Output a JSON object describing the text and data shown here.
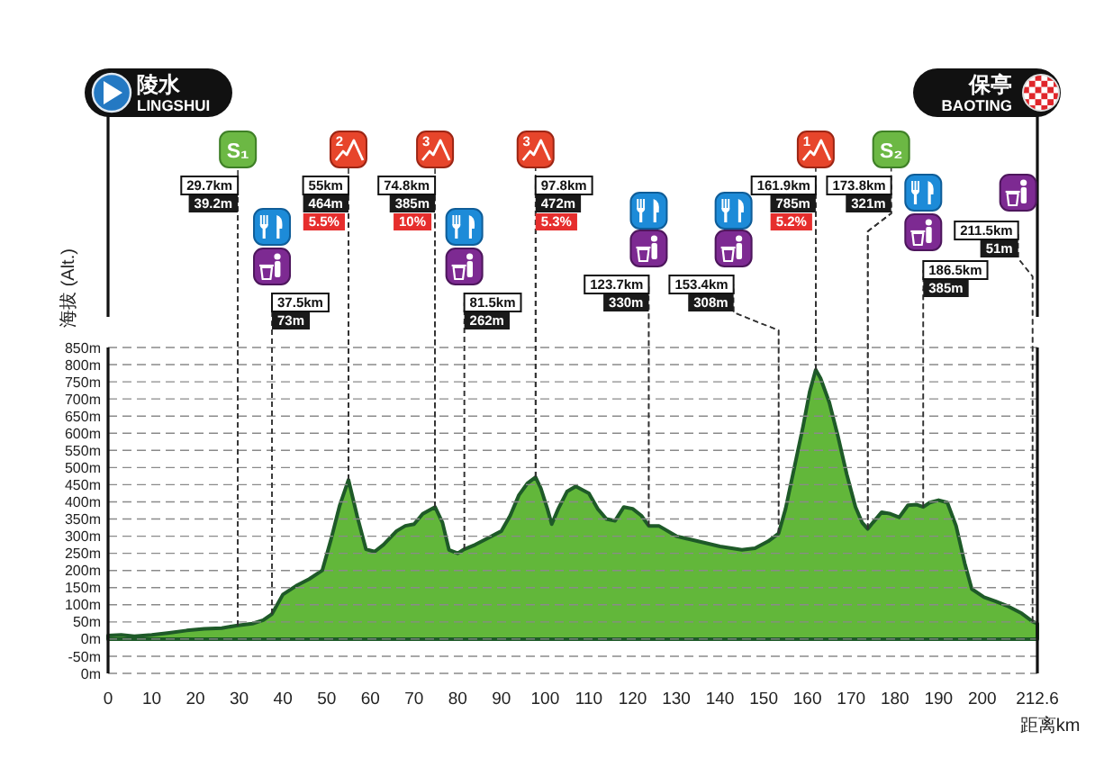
{
  "chart_data": {
    "type": "area",
    "xlabel": "距离km",
    "ylabel": "海拔 (Alt.)",
    "color": "#62b73a",
    "grid": "y",
    "x": [
      0,
      3,
      6,
      10,
      14,
      18,
      22,
      26,
      29.7,
      33,
      35.5,
      37.5,
      40,
      43,
      46,
      49,
      51,
      53,
      55,
      57,
      59,
      61,
      63,
      66,
      68,
      70,
      72,
      74.8,
      76.5,
      78,
      80,
      81.5,
      84,
      87,
      90,
      92,
      94,
      96,
      97.8,
      99,
      100.5,
      101.5,
      103,
      105,
      107,
      110,
      112,
      114,
      116,
      118,
      120,
      122,
      123.7,
      126,
      130,
      135,
      140,
      145,
      148,
      151,
      153.4,
      155,
      157,
      159,
      160.5,
      161.9,
      163,
      165,
      167,
      169,
      171,
      172.5,
      173.8,
      175,
      177,
      179,
      181,
      183,
      185,
      186.5,
      188,
      190,
      192,
      194,
      196,
      197.6,
      200.4,
      203,
      206,
      209,
      211.5,
      212.6
    ],
    "values": [
      10,
      12,
      8,
      12,
      18,
      25,
      30,
      32,
      40,
      45,
      55,
      73,
      130,
      155,
      175,
      200,
      290,
      390,
      464,
      358,
      262,
      255,
      275,
      315,
      330,
      335,
      365,
      385,
      340,
      260,
      250,
      262,
      275,
      295,
      315,
      360,
      420,
      455,
      472,
      440,
      380,
      335,
      380,
      430,
      445,
      425,
      380,
      350,
      345,
      385,
      380,
      360,
      330,
      330,
      300,
      285,
      270,
      260,
      265,
      285,
      308,
      380,
      500,
      620,
      720,
      785,
      760,
      690,
      590,
      480,
      385,
      340,
      321,
      340,
      370,
      365,
      355,
      390,
      392,
      385,
      398,
      405,
      398,
      330,
      220,
      146,
      122,
      110,
      95,
      75,
      51,
      45
    ],
    "xlim": [
      0,
      212.6
    ],
    "ylim": [
      -100,
      850
    ],
    "xticks": [
      0,
      10,
      20,
      30,
      40,
      50,
      60,
      70,
      80,
      90,
      100,
      110,
      120,
      130,
      140,
      150,
      160,
      170,
      180,
      190,
      200,
      212.6
    ],
    "yticks": [
      {
        "value": -100,
        "label": "0m"
      },
      {
        "value": -50,
        "label": "-50m"
      },
      {
        "value": 0,
        "label": "0m"
      },
      {
        "value": 50,
        "label": "50m"
      },
      {
        "value": 100,
        "label": "100m"
      },
      {
        "value": 150,
        "label": "150m"
      },
      {
        "value": 200,
        "label": "200m"
      },
      {
        "value": 250,
        "label": "250m"
      },
      {
        "value": 300,
        "label": "300m"
      },
      {
        "value": 350,
        "label": "350m"
      },
      {
        "value": 400,
        "label": "400m"
      },
      {
        "value": 450,
        "label": "450m"
      },
      {
        "value": 500,
        "label": "500m"
      },
      {
        "value": 550,
        "label": "550m"
      },
      {
        "value": 600,
        "label": "600m"
      },
      {
        "value": 650,
        "label": "650m"
      },
      {
        "value": 700,
        "label": "700m"
      },
      {
        "value": 750,
        "label": "750m"
      },
      {
        "value": 800,
        "label": "800m"
      },
      {
        "value": 850,
        "label": "850m"
      }
    ],
    "annotations": [
      "陵水",
      "LINGSHUI",
      "保亭",
      "BAOTING",
      {
        "text": "S₁",
        "x": 29.7,
        "y": 39.2
      },
      {
        "text": "29.7km",
        "x": 29.7,
        "y": 39.2
      },
      {
        "text": "39.2m",
        "x": 29.7,
        "y": 39.2
      },
      {
        "text": "37.5km",
        "x": 37.5,
        "y": 73
      },
      {
        "text": "73m",
        "x": 37.5,
        "y": 73
      },
      {
        "text": "2",
        "x": 55,
        "y": 464
      },
      {
        "text": "55km",
        "x": 55,
        "y": 464
      },
      {
        "text": "464m",
        "x": 55,
        "y": 464
      },
      {
        "text": "5.5%",
        "x": 55,
        "y": 464
      },
      {
        "text": "3",
        "x": 74.8,
        "y": 385
      },
      {
        "text": "74.8km",
        "x": 74.8,
        "y": 385
      },
      {
        "text": "385m",
        "x": 74.8,
        "y": 385
      },
      {
        "text": "10%",
        "x": 74.8,
        "y": 385
      },
      {
        "text": "81.5km",
        "x": 81.5,
        "y": 262
      },
      {
        "text": "262m",
        "x": 81.5,
        "y": 262
      },
      {
        "text": "3",
        "x": 97.8,
        "y": 472
      },
      {
        "text": "97.8km",
        "x": 97.8,
        "y": 472
      },
      {
        "text": "472m",
        "x": 97.8,
        "y": 472
      },
      {
        "text": "5.3%",
        "x": 97.8,
        "y": 472
      },
      {
        "text": "123.7km",
        "x": 123.7,
        "y": 330
      },
      {
        "text": "330m",
        "x": 123.7,
        "y": 330
      },
      {
        "text": "153.4km",
        "x": 153.4,
        "y": 308
      },
      {
        "text": "308m",
        "x": 153.4,
        "y": 308
      },
      {
        "text": "1",
        "x": 161.9,
        "y": 785
      },
      {
        "text": "161.9km",
        "x": 161.9,
        "y": 785
      },
      {
        "text": "785m",
        "x": 161.9,
        "y": 785
      },
      {
        "text": "5.2%",
        "x": 161.9,
        "y": 785
      },
      {
        "text": "S₂",
        "x": 173.8,
        "y": 321
      },
      {
        "text": "173.8km",
        "x": 173.8,
        "y": 321
      },
      {
        "text": "321m",
        "x": 173.8,
        "y": 321
      },
      {
        "text": "186.5km",
        "x": 186.5,
        "y": 385
      },
      {
        "text": "385m",
        "x": 186.5,
        "y": 385
      },
      {
        "text": "211.5km",
        "x": 211.5,
        "y": 51
      },
      {
        "text": "51m",
        "x": 211.5,
        "y": 51
      }
    ]
  }
}
